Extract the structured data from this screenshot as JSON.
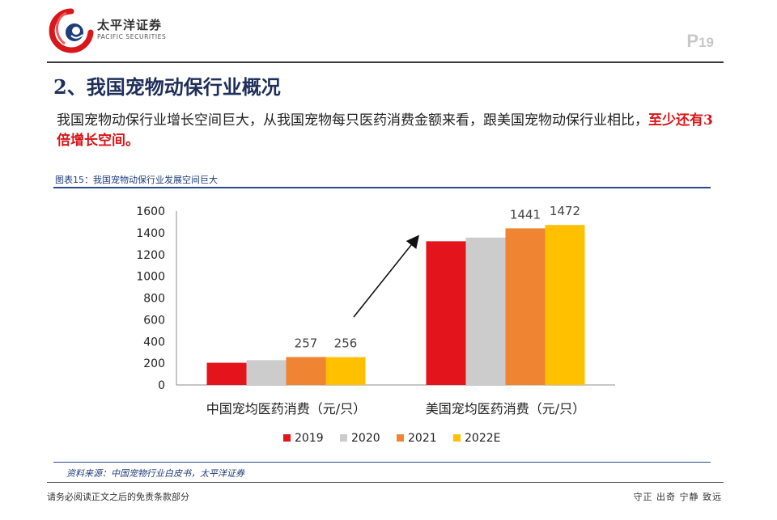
{
  "header": {
    "brand_cn": "太平洋证券",
    "brand_en": "PACIFIC SECURITIES",
    "page_prefix": "P",
    "page_number": "19"
  },
  "section_title": "2、我国宠物动保行业概况",
  "paragraph": {
    "text": "我国宠物动保行业增长空间巨大，从我国宠物每只医药消费金额来看，跟美国宠物动保行业相比，",
    "highlight": "至少还有3倍增长空间。"
  },
  "figure_title": "图表15：我国宠物动保行业发展空间巨大",
  "chart_data": {
    "type": "bar",
    "categories": [
      "中国宠均医药消费（元/只）",
      "美国宠均医药消费（元/只）"
    ],
    "series": [
      {
        "name": "2019",
        "color": "#e3141b",
        "values": [
          204,
          1322
        ]
      },
      {
        "name": "2020",
        "color": "#cccccc",
        "values": [
          228,
          1356
        ]
      },
      {
        "name": "2021",
        "color": "#ef8533",
        "values": [
          257,
          1441
        ]
      },
      {
        "name": "2022E",
        "color": "#ffc000",
        "values": [
          256,
          1472
        ]
      }
    ],
    "data_labels": [
      {
        "series": 2,
        "category": 0,
        "text": "257"
      },
      {
        "series": 3,
        "category": 0,
        "text": "256"
      },
      {
        "series": 2,
        "category": 1,
        "text": "1441"
      },
      {
        "series": 3,
        "category": 1,
        "text": "1472"
      }
    ],
    "yticks": [
      "0",
      "200",
      "400",
      "600",
      "800",
      "1000",
      "1200",
      "1400",
      "1600"
    ],
    "ylim": [
      0,
      1600
    ],
    "legend_position": "bottom",
    "grid": false,
    "annotation": "arrow from China group to US group"
  },
  "source": "资料来源：中国宠物行业白皮书，太平洋证券",
  "footer": {
    "left": "请务必阅读正文之后的免责条款部分",
    "right": "守正 出奇 宁静 致远"
  }
}
